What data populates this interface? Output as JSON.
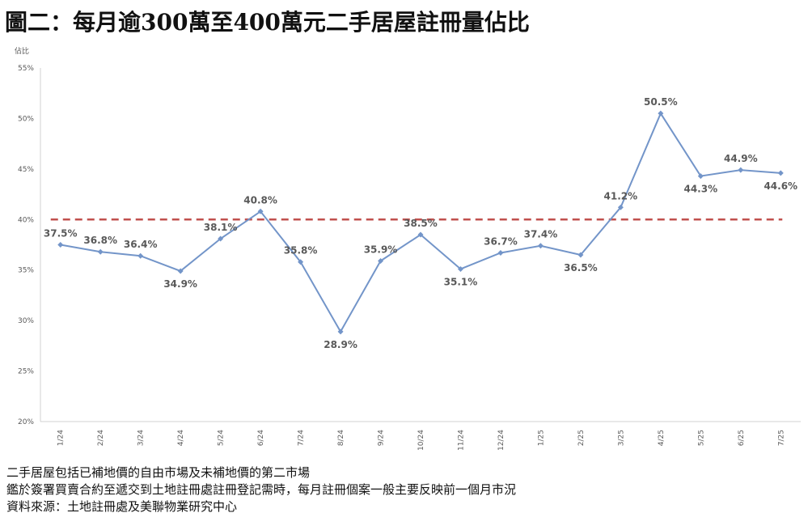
{
  "title": "圖二：每月逾300萬至400萬元二手居屋註冊量佔比",
  "notes": [
    "二手居屋包括已補地價的自由市場及未補地價的第二市場",
    "鑑於簽署買賣合約至遞交到土地註冊處註冊登記需時，每月註冊個案一般主要反映前一個月市況",
    "資料來源：土地註冊處及美聯物業研究中心"
  ],
  "chart_data": {
    "type": "line",
    "title": "",
    "xlabel": "",
    "ylabel": "佔比",
    "ylim": [
      20,
      55
    ],
    "yticks": [
      "20%",
      "25%",
      "30%",
      "35%",
      "40%",
      "45%",
      "50%",
      "55%"
    ],
    "grid": false,
    "categories": [
      "1/24",
      "2/24",
      "3/24",
      "4/24",
      "5/24",
      "6/24",
      "7/24",
      "8/24",
      "9/24",
      "10/24",
      "11/24",
      "12/24",
      "1/25",
      "2/25",
      "3/25",
      "4/25",
      "5/25",
      "6/25",
      "7/25"
    ],
    "series": [
      {
        "values": [
          37.5,
          36.8,
          36.4,
          34.9,
          38.1,
          40.8,
          35.8,
          28.9,
          35.9,
          38.5,
          35.1,
          36.7,
          37.4,
          36.5,
          41.2,
          50.5,
          44.3,
          44.9,
          44.6
        ],
        "labels": [
          "37.5%",
          "36.8%",
          "36.4%",
          "34.9%",
          "38.1%",
          "40.8%",
          "35.8%",
          "28.9%",
          "35.9%",
          "38.5%",
          "35.1%",
          "36.7%",
          "37.4%",
          "36.5%",
          "41.2%",
          "50.5%",
          "44.3%",
          "44.9%",
          "44.6%"
        ],
        "color": "#7395c9"
      }
    ],
    "reference_line": {
      "value": 40,
      "color": "#c0504d",
      "style": "dashed"
    }
  }
}
